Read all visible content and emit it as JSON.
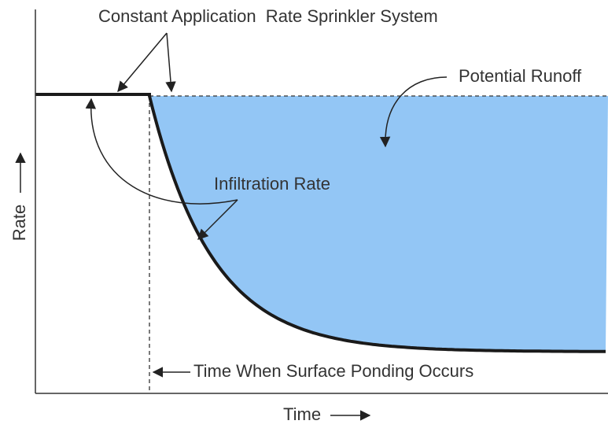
{
  "title": "Constant Application  Rate Sprinkler System",
  "annotations": {
    "runoff": "Potential Runoff",
    "infiltration": "Infiltration Rate",
    "ponding": "Time When Surface Ponding Occurs"
  },
  "axes": {
    "y_label": "Rate",
    "x_label": "Time"
  }
}
